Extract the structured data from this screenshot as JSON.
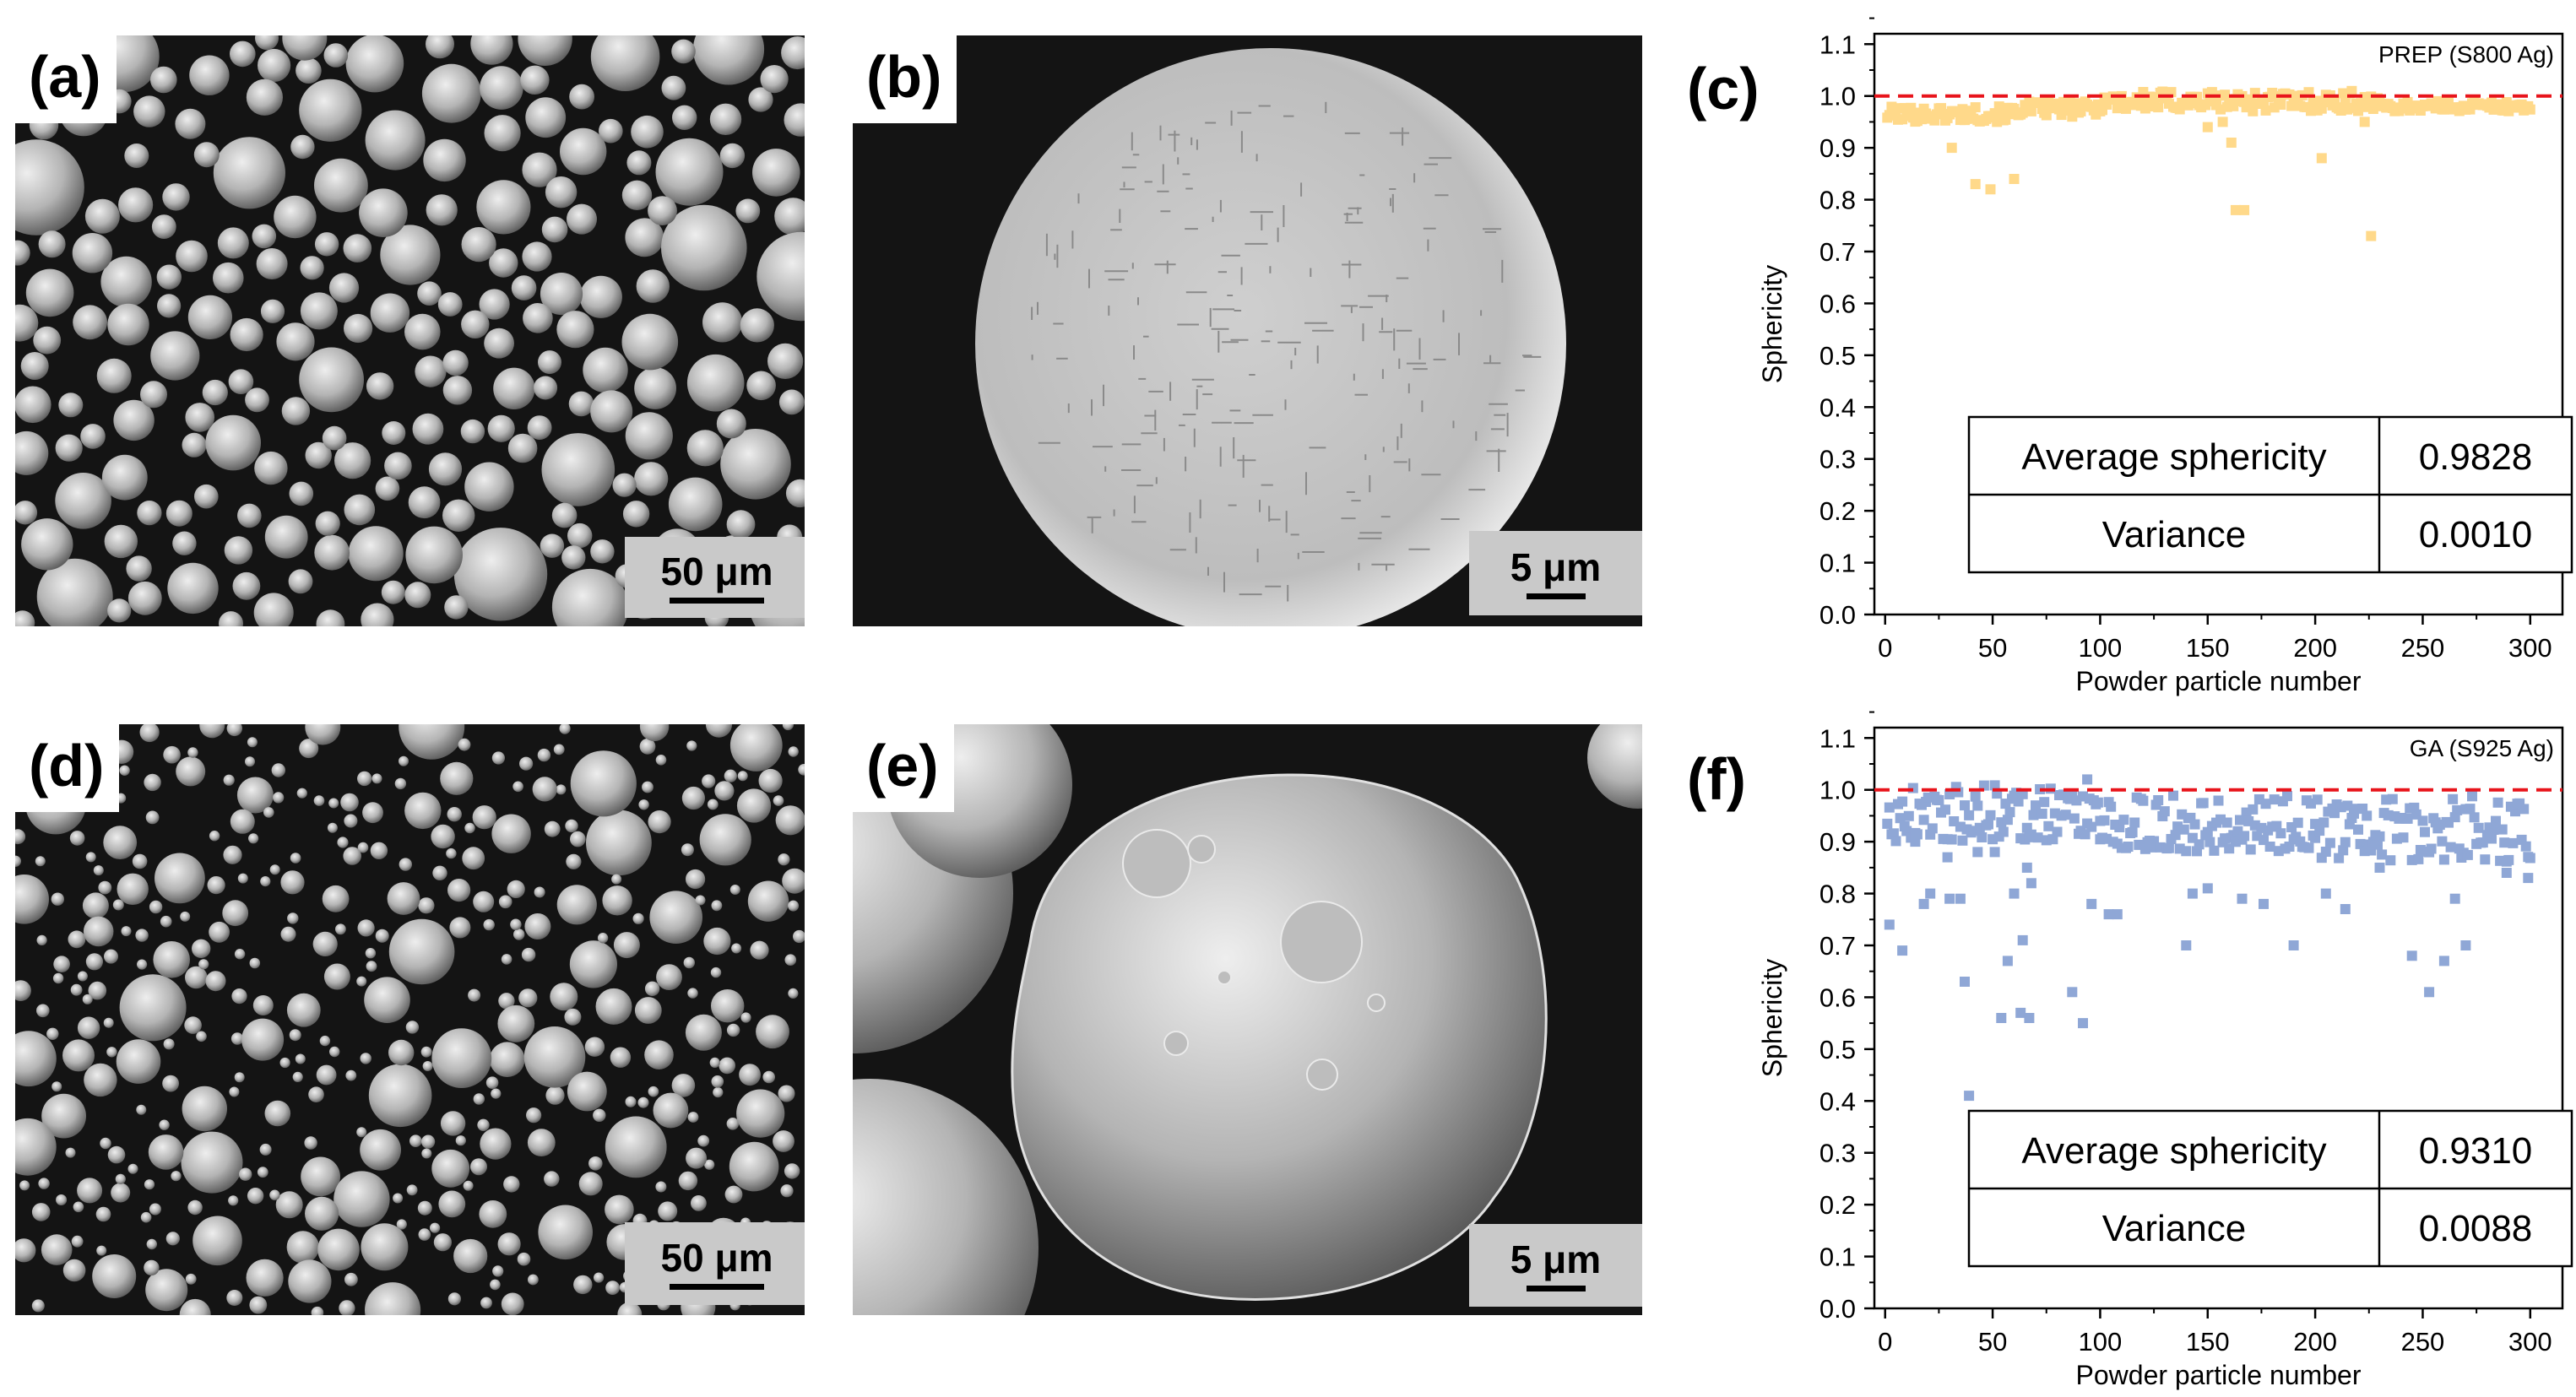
{
  "panels": {
    "a": {
      "label": "(a)",
      "scale": "50 μm"
    },
    "b": {
      "label": "(b)",
      "scale": "5 μm"
    },
    "c": {
      "label": "(c)"
    },
    "d": {
      "label": "(d)",
      "scale": "50 μm"
    },
    "e": {
      "label": "(e)",
      "scale": "5 μm"
    },
    "f": {
      "label": "(f)"
    }
  },
  "colors": {
    "prep_points": "#ffd98a",
    "ga_points": "#8fa7d6",
    "reference_line": "#e8141b"
  },
  "chart_data": [
    {
      "type": "scatter",
      "panel": "c",
      "title": "PREP (S800 Ag)",
      "xlabel": "Powder particle number",
      "ylabel": "Sphericity",
      "xlim": [
        -5,
        315
      ],
      "ylim": [
        0.0,
        1.12
      ],
      "xticks": [
        0,
        50,
        100,
        150,
        200,
        250,
        300
      ],
      "yticks": [
        0.0,
        0.1,
        0.2,
        0.3,
        0.4,
        0.5,
        0.6,
        0.7,
        0.8,
        0.9,
        1.0,
        1.1
      ],
      "reference_line": 1.0,
      "marker": "square",
      "outliers": [
        {
          "x": 31,
          "y": 0.9
        },
        {
          "x": 42,
          "y": 0.83
        },
        {
          "x": 49,
          "y": 0.82
        },
        {
          "x": 60,
          "y": 0.84
        },
        {
          "x": 150,
          "y": 0.94
        },
        {
          "x": 157,
          "y": 0.95
        },
        {
          "x": 161,
          "y": 0.91
        },
        {
          "x": 163,
          "y": 0.78
        },
        {
          "x": 167,
          "y": 0.78
        },
        {
          "x": 203,
          "y": 0.88
        },
        {
          "x": 223,
          "y": 0.95
        },
        {
          "x": 226,
          "y": 0.73
        }
      ],
      "bulk_segments": [
        {
          "x_from": 1,
          "x_to": 60,
          "y_low": 0.95,
          "y_high": 0.98
        },
        {
          "x_from": 60,
          "x_to": 100,
          "y_low": 0.96,
          "y_high": 0.99
        },
        {
          "x_from": 100,
          "x_to": 230,
          "y_low": 0.97,
          "y_high": 1.01
        },
        {
          "x_from": 230,
          "x_to": 300,
          "y_low": 0.97,
          "y_high": 0.99
        }
      ],
      "table": {
        "rows": [
          {
            "label": "Average sphericity",
            "value": "0.9828"
          },
          {
            "label": "Variance",
            "value": "0.0010"
          }
        ]
      }
    },
    {
      "type": "scatter",
      "panel": "f",
      "title": "GA (S925 Ag)",
      "xlabel": "Powder particle number",
      "ylabel": "Sphericity",
      "xlim": [
        -5,
        315
      ],
      "ylim": [
        0.0,
        1.12
      ],
      "xticks": [
        0,
        50,
        100,
        150,
        200,
        250,
        300
      ],
      "yticks": [
        0.0,
        0.1,
        0.2,
        0.3,
        0.4,
        0.5,
        0.6,
        0.7,
        0.8,
        0.9,
        1.0,
        1.1
      ],
      "reference_line": 1.0,
      "marker": "square",
      "outliers": [
        {
          "x": 2,
          "y": 0.74
        },
        {
          "x": 8,
          "y": 0.69
        },
        {
          "x": 14,
          "y": 0.9
        },
        {
          "x": 18,
          "y": 0.78
        },
        {
          "x": 21,
          "y": 0.8
        },
        {
          "x": 29,
          "y": 0.87
        },
        {
          "x": 30,
          "y": 0.79
        },
        {
          "x": 35,
          "y": 0.79
        },
        {
          "x": 37,
          "y": 0.63
        },
        {
          "x": 39,
          "y": 0.41
        },
        {
          "x": 43,
          "y": 0.88
        },
        {
          "x": 51,
          "y": 0.88
        },
        {
          "x": 54,
          "y": 0.56
        },
        {
          "x": 57,
          "y": 0.67
        },
        {
          "x": 60,
          "y": 0.8
        },
        {
          "x": 63,
          "y": 0.57
        },
        {
          "x": 64,
          "y": 0.71
        },
        {
          "x": 66,
          "y": 0.85
        },
        {
          "x": 67,
          "y": 0.56
        },
        {
          "x": 68,
          "y": 0.82
        },
        {
          "x": 87,
          "y": 0.61
        },
        {
          "x": 92,
          "y": 0.55
        },
        {
          "x": 96,
          "y": 0.78
        },
        {
          "x": 104,
          "y": 0.76
        },
        {
          "x": 108,
          "y": 0.76
        },
        {
          "x": 140,
          "y": 0.7
        },
        {
          "x": 143,
          "y": 0.8
        },
        {
          "x": 150,
          "y": 0.81
        },
        {
          "x": 166,
          "y": 0.79
        },
        {
          "x": 176,
          "y": 0.78
        },
        {
          "x": 190,
          "y": 0.7
        },
        {
          "x": 205,
          "y": 0.8
        },
        {
          "x": 214,
          "y": 0.77
        },
        {
          "x": 230,
          "y": 0.85
        },
        {
          "x": 245,
          "y": 0.68
        },
        {
          "x": 253,
          "y": 0.61
        },
        {
          "x": 260,
          "y": 0.67
        },
        {
          "x": 265,
          "y": 0.79
        },
        {
          "x": 270,
          "y": 0.7
        },
        {
          "x": 289,
          "y": 0.84
        },
        {
          "x": 299,
          "y": 0.83
        },
        {
          "x": 94,
          "y": 1.02
        }
      ],
      "bulk_segments": [
        {
          "x_from": 1,
          "x_to": 100,
          "y_low": 0.9,
          "y_high": 1.01
        },
        {
          "x_from": 100,
          "x_to": 200,
          "y_low": 0.88,
          "y_high": 0.99
        },
        {
          "x_from": 200,
          "x_to": 300,
          "y_low": 0.86,
          "y_high": 0.99
        }
      ],
      "table": {
        "rows": [
          {
            "label": "Average sphericity",
            "value": "0.9310"
          },
          {
            "label": "Variance",
            "value": "0.0088"
          }
        ]
      }
    }
  ]
}
